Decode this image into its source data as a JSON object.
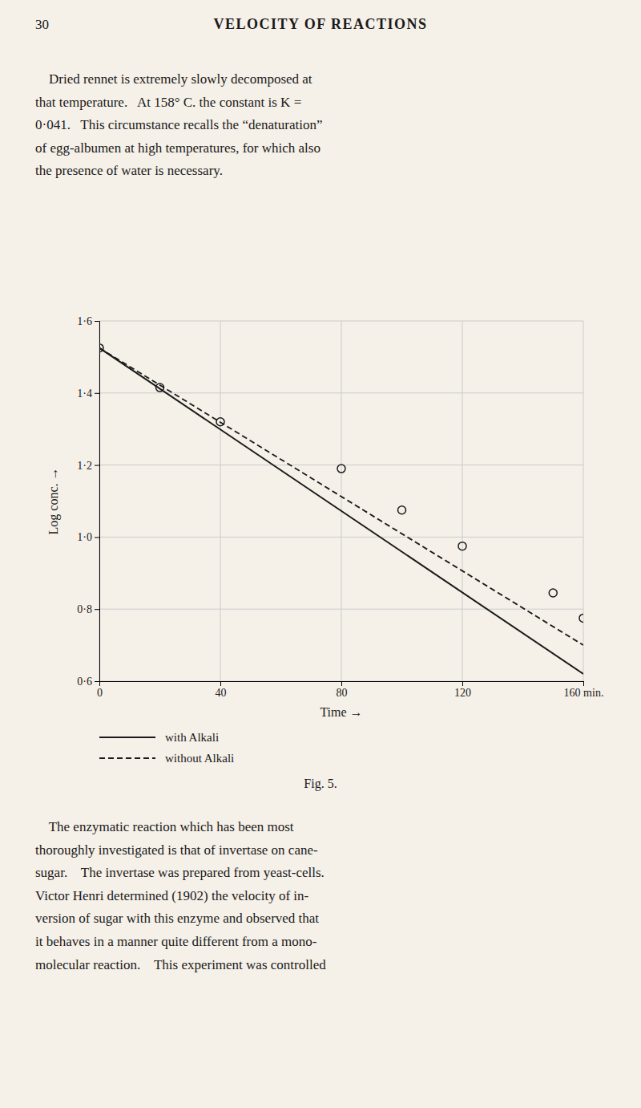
{
  "page_number": "30",
  "header": "VELOCITY OF REACTIONS",
  "body_text_top": "    Dried rennet is extremely slowly decomposed at\nthat temperature.   At 158° C. the constant is K =\n0·041.   This circumstance recalls the “denaturation”\nof egg-albumen at high temperatures, for which also\nthe presence of water is necessary.",
  "body_text_bottom": "    The enzymatic reaction which has been most\nthoroughly investigated is that of invertase on cane-\nsugar.    The invertase was prepared from yeast-cells.\nVictor Henri determined (1902) the velocity of in-\nversion of sugar with this enzyme and observed that\nit behaves in a manner quite different from a mono-\nmolecular reaction.    This experiment was controlled",
  "chart_data": {
    "type": "line",
    "title": "Fig. 5.",
    "xlabel": "Time →",
    "ylabel": "Log conc. →",
    "xlim": [
      0,
      160
    ],
    "ylim": [
      0.6,
      1.6
    ],
    "xticks": [
      0,
      40,
      80,
      120,
      {
        "value": 160,
        "label": "160 min."
      }
    ],
    "yticks": [
      {
        "value": 0.6,
        "label": "0·6"
      },
      {
        "value": 0.8,
        "label": "0·8"
      },
      {
        "value": 1.0,
        "label": "1·0"
      },
      {
        "value": 1.2,
        "label": "1·2"
      },
      {
        "value": 1.4,
        "label": "1·4"
      },
      {
        "value": 1.6,
        "label": "1·6"
      }
    ],
    "grid": true,
    "legend": "bottom",
    "series": [
      {
        "name": "with Alkali",
        "type": "line",
        "line_style": "solid",
        "color": "#1a1a1a",
        "x": [
          0,
          160
        ],
        "values": [
          1.525,
          0.62
        ]
      },
      {
        "name": "without Alkali",
        "type": "line",
        "line_style": "dashed",
        "color": "#1a1a1a",
        "x": [
          0,
          160
        ],
        "values": [
          1.525,
          0.7
        ]
      },
      {
        "type": "scatter",
        "marker": "circle",
        "color": "#1a1a1a",
        "x": [
          0,
          20,
          40,
          80,
          100,
          120,
          150,
          160
        ],
        "values": [
          1.525,
          1.415,
          1.32,
          1.19,
          1.075,
          0.975,
          0.845,
          0.775
        ]
      }
    ]
  }
}
